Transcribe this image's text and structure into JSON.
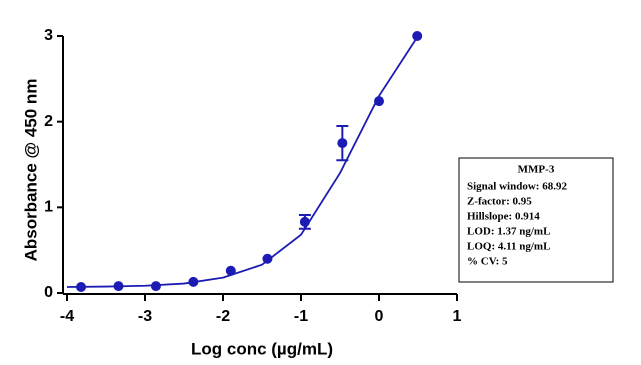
{
  "chart_data": {
    "type": "scatter",
    "xlabel": "Log conc (µg/mL)",
    "ylabel": "Absorbance @ 450 nm",
    "xlim": [
      -4,
      1
    ],
    "ylim": [
      0,
      3
    ],
    "xticks": [
      -4,
      -3,
      -2,
      -1,
      0,
      1
    ],
    "yticks": [
      0,
      1,
      2,
      3
    ],
    "grid": false,
    "points": {
      "color": "#1c1cb4",
      "x": [
        -3.82,
        -3.34,
        -2.86,
        -2.38,
        -1.9,
        -1.43,
        -0.95,
        -0.47,
        0,
        0.49
      ],
      "values": [
        0.07,
        0.08,
        0.08,
        0.13,
        0.26,
        0.4,
        0.83,
        1.75,
        2.24,
        3.0
      ],
      "errors": [
        null,
        null,
        null,
        null,
        null,
        null,
        0.08,
        0.2,
        null,
        null
      ]
    },
    "fit": {
      "color": "#1c1cb4",
      "x": [
        -4,
        -3.5,
        -3,
        -2.5,
        -2,
        -1.5,
        -1,
        -0.5,
        0,
        0.5
      ],
      "values": [
        0.07,
        0.075,
        0.085,
        0.11,
        0.18,
        0.33,
        0.68,
        1.4,
        2.3,
        3.0
      ]
    },
    "annotation": {
      "title": "MMP-3",
      "lines": [
        "Signal window: 68.92",
        "Z-factor: 0.95",
        "Hillslope: 0.914",
        "LOD: 1.37 ng/mL",
        "LOQ: 4.11 ng/mL",
        "% CV: 5"
      ]
    }
  }
}
